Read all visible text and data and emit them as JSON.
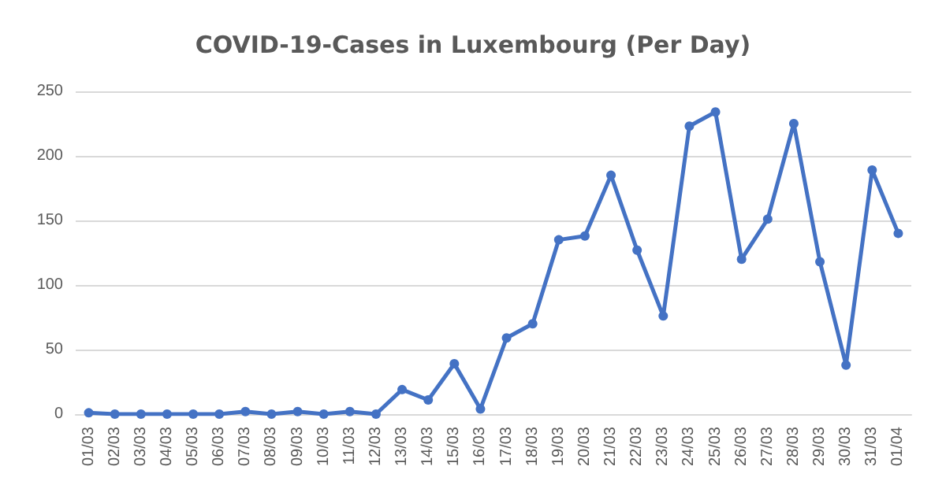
{
  "chart_data": {
    "type": "line",
    "title": "COVID-19-Cases in Luxembourg (Per Day)",
    "categories": [
      "01/03",
      "02/03",
      "03/03",
      "04/03",
      "05/03",
      "06/03",
      "07/03",
      "08/03",
      "09/03",
      "10/03",
      "11/03",
      "12/03",
      "13/03",
      "14/03",
      "15/03",
      "16/03",
      "17/03",
      "18/03",
      "19/03",
      "20/03",
      "21/03",
      "22/03",
      "23/03",
      "24/03",
      "25/03",
      "26/03",
      "27/03",
      "28/03",
      "29/03",
      "30/03",
      "31/03",
      "01/04"
    ],
    "series": [
      {
        "color": "#4472c4",
        "values": [
          1,
          0,
          0,
          0,
          0,
          0,
          2,
          0,
          2,
          0,
          2,
          0,
          19,
          11,
          39,
          4,
          59,
          70,
          135,
          138,
          185,
          127,
          76,
          223,
          234,
          120,
          151,
          225,
          118,
          38,
          189,
          140
        ]
      }
    ],
    "ylim": [
      0,
      250
    ],
    "yticks": [
      0,
      50,
      100,
      150,
      200,
      250
    ],
    "grid": "y",
    "marker": "circle",
    "line_style": "solid"
  }
}
